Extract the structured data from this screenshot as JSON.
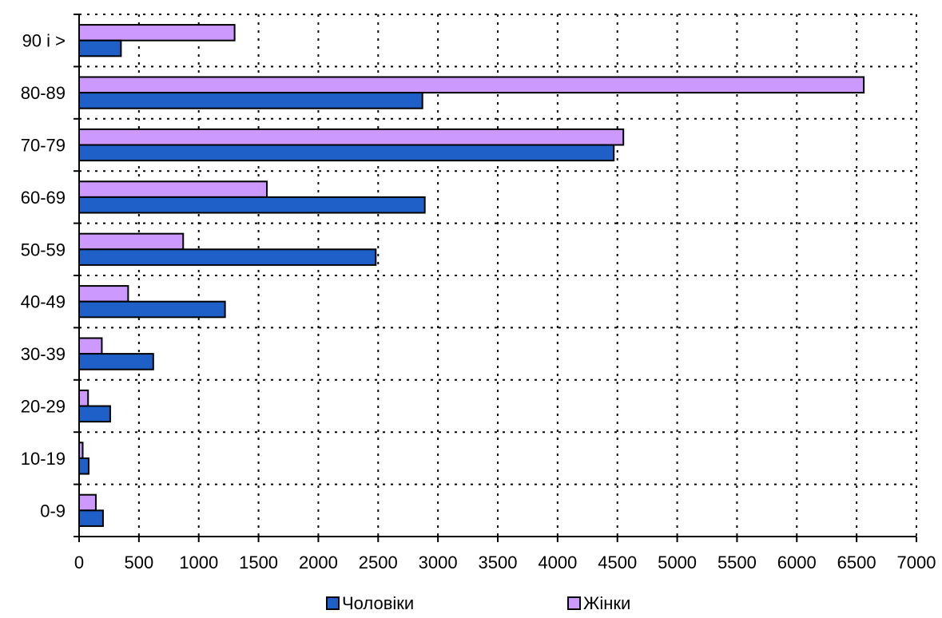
{
  "chart_data": {
    "type": "bar",
    "orientation": "horizontal",
    "categories": [
      "0-9",
      "10-19",
      "20-29",
      "30-39",
      "40-49",
      "50-59",
      "60-69",
      "70-79",
      "80-89",
      "90 і >"
    ],
    "series": [
      {
        "name": "Чоловіки",
        "color": "#1f5fc8",
        "values": [
          200,
          80,
          260,
          620,
          1220,
          2480,
          2890,
          4470,
          2870,
          350
        ]
      },
      {
        "name": "Жінки",
        "color": "#cc99ff",
        "values": [
          140,
          30,
          75,
          190,
          410,
          870,
          1570,
          4550,
          6560,
          1300
        ]
      }
    ],
    "xlim": [
      0,
      7000
    ],
    "x_ticks": [
      "0",
      "500",
      "1000",
      "1500",
      "2000",
      "2500",
      "3000",
      "3500",
      "4000",
      "4500",
      "5000",
      "5500",
      "6000",
      "6500",
      "7000"
    ],
    "title": "",
    "xlabel": "",
    "ylabel": "",
    "grid": true,
    "legend": "bottom"
  }
}
